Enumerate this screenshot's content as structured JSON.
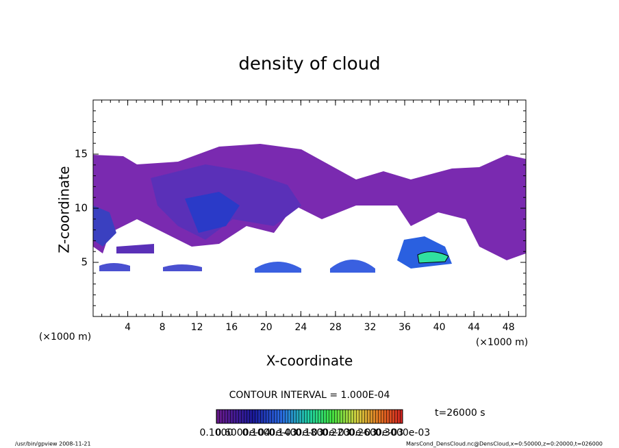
{
  "chart_data": {
    "type": "contour",
    "title": "density of cloud",
    "xlabel": "X-coordinate",
    "ylabel": "Z-coordinate",
    "xunit": "(×1000 m)",
    "yunit": "(×1000 m)",
    "xlim": [
      0,
      50
    ],
    "ylim": [
      0,
      20
    ],
    "xticks": [
      4,
      8,
      12,
      16,
      20,
      24,
      28,
      32,
      36,
      40,
      44,
      48
    ],
    "yticks": [
      5,
      10,
      15
    ],
    "contour_interval": "CONTOUR INTERVAL = 1.000E-04",
    "time": "t=26000 s",
    "colorbar_labels": [
      "0.1000",
      "0.6000e-04",
      "0.1000e-03",
      "0.1400e-03",
      "0.1800e-03",
      "0.2200e-03",
      "0.2600e-03",
      "0.3000e-03"
    ]
  },
  "footer": {
    "left": "/usr/bin/gpview  2008-11-21",
    "right": "MarsCond_DensCloud.nc@DensCloud,x=0:50000,z=0:20000,t=026000"
  }
}
